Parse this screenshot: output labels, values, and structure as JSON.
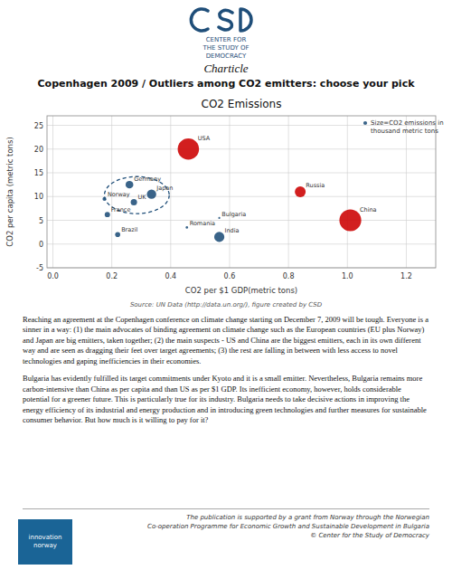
{
  "chart_data": {
    "type": "scatter",
    "title": "CO2 Emissions",
    "x_label": "CO2 per $1 GDP(metric tons)",
    "y_label": "CO2 per capita (metric tons)",
    "xlim": [
      -0.02,
      1.3
    ],
    "ylim": [
      -5,
      27
    ],
    "xticks": [
      {
        "value": 0,
        "label": "0.0"
      },
      0.2,
      0.4,
      0.6,
      0.8,
      {
        "value": 1.0,
        "label": "1.0"
      },
      1.2
    ],
    "yticks": [
      -5,
      0,
      5,
      10,
      15,
      20,
      25
    ],
    "grid": true,
    "legend": "upper right",
    "labels": [
      "USA",
      "China",
      "Russia",
      "Germany",
      "Japan",
      "UK",
      "Norway",
      "France",
      "Brazil",
      "Romania",
      "Bulgaria",
      "India"
    ],
    "x": [
      0.46,
      1.01,
      0.84,
      0.26,
      0.335,
      0.275,
      0.175,
      0.185,
      0.22,
      0.455,
      0.565,
      0.565
    ],
    "values": [
      20.0,
      5.0,
      11.0,
      12.5,
      10.5,
      8.8,
      9.5,
      6.2,
      2.0,
      3.5,
      5.5,
      1.5
    ],
    "sizes": [
      6200,
      6500,
      1600,
      800,
      1200,
      550,
      200,
      380,
      350,
      80,
      55,
      1400
    ],
    "colors": [
      "#CC0000",
      "#CC0000",
      "#CC0000",
      "#1F4E79",
      "#1F4E79",
      "#1F4E79",
      "#1F4E79",
      "#1F4E79",
      "#1F4E79",
      "#1F4E79",
      "#1F4E79",
      "#1F4E79"
    ],
    "size_legend": {
      "label": "Size=CO2 emissions in\nthousand metric tons",
      "size": 200,
      "color": "#1F4E79"
    },
    "ellipse": {
      "x": 0.285,
      "y": 10.3,
      "width": 0.22,
      "height": 7.8,
      "color": "#1F4E79",
      "line_style": "dashed"
    }
  },
  "page": {
    "logo_text": "CENTER FOR\nTHE STUDY OF\nDEMOCRACY",
    "charticle": "Charticle",
    "headline": "Copenhagen 2009 / Outliers among CO2 emitters: choose your pick",
    "source": "Source: UN Data (http://data.un.org/), figure created by CSD",
    "paragraphs": [
      "Reaching an agreement at the Copenhagen conference on climate change starting on December 7, 2009 will be tough. Everyone is a sinner in a way: (1) the main advocates of binding agreement on climate change such as the European countries (EU plus Norway) and Japan are big emitters, taken together; (2) the main suspects - US and China are the biggest emitters, each in its own different way and are seen as dragging their feet over target agreements; (3) the rest are falling in between with less access to novel technologies and gaping inefficiencies in their economies.",
      "Bulgaria has evidently fulfilled its target commitments under Kyoto and it is a small emitter. Nevertheless, Bulgaria remains more carbon-intensive than China as per capita and than US as per $1 GDP. Its inefficient economy, however, holds considerable potential for a greener future. This is particularly true for its industry. Bulgaria needs to take decisive actions in improving the energy efficiency of its industrial and energy production and in introducing green technologies and further measures for sustainable consumer behavior. But how much is it willing to pay for it?"
    ],
    "footer": "The publication is supported by a grant from Norway through the Norwegian\nCo-operation Programme for Economic Growth and Sustainable Development in Bulgaria\n© Center for the Study of Democracy",
    "sponsor_logo": "innovation\nnorway"
  }
}
